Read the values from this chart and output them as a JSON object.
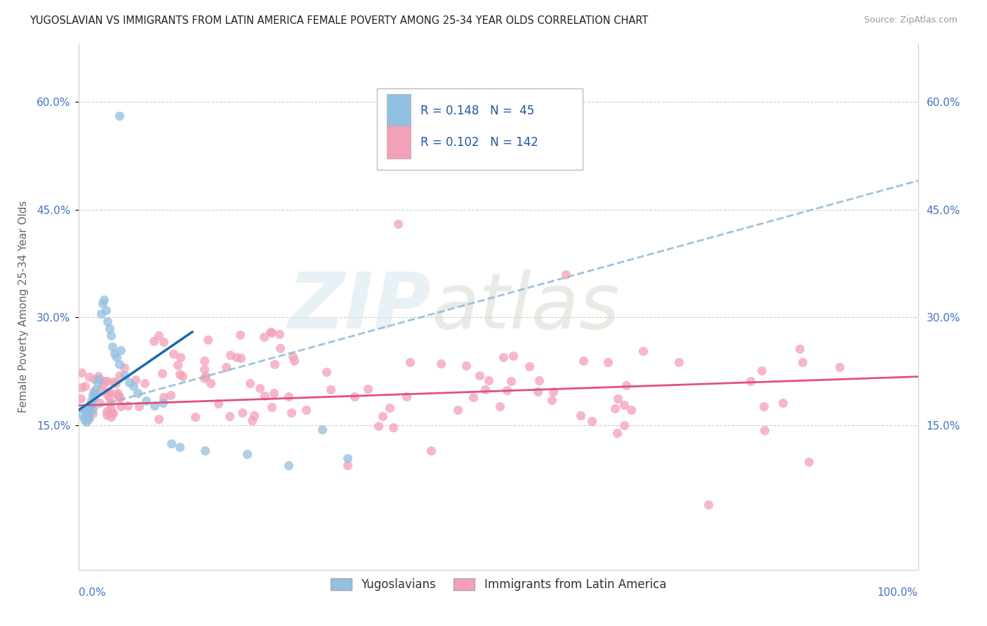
{
  "title": "YUGOSLAVIAN VS IMMIGRANTS FROM LATIN AMERICA FEMALE POVERTY AMONG 25-34 YEAR OLDS CORRELATION CHART",
  "source": "Source: ZipAtlas.com",
  "ylabel": "Female Poverty Among 25-34 Year Olds",
  "legend_label1": "Yugoslavians",
  "legend_label2": "Immigrants from Latin America",
  "R1": 0.148,
  "N1": 45,
  "R2": 0.102,
  "N2": 142,
  "color_blue": "#92c0e0",
  "color_pink": "#f4a0b8",
  "color_blue_line": "#1a6aaa",
  "color_pink_line": "#e05080",
  "color_dash_line": "#90b8d8",
  "xlim": [
    0.0,
    1.0
  ],
  "ylim": [
    -0.05,
    0.68
  ],
  "yticks": [
    0.15,
    0.3,
    0.45,
    0.6
  ],
  "grid_color": "#cccccc",
  "bg_color": "#ffffff"
}
